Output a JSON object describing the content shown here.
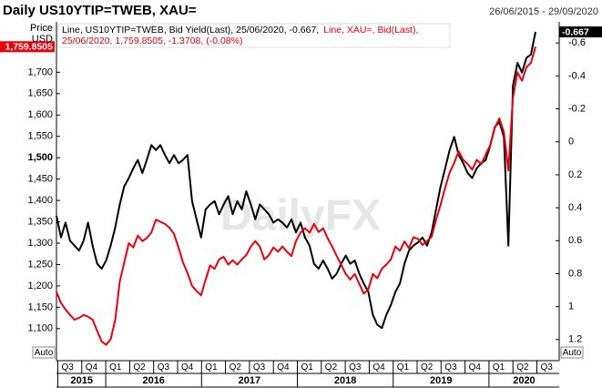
{
  "chart_data": {
    "type": "line",
    "title": "Daily US10YTIP=TWEB, XAU=",
    "date_range": "26/06/2015 - 29/09/2020",
    "ylabel": "Price",
    "yunit": "USD",
    "watermark": "DailyFX",
    "left_axis_mode": "Auto",
    "right_axis_mode": "Auto",
    "ylim": [
      1025,
      1818
    ],
    "yticks": [
      {
        "value": 1100,
        "label": "1,100"
      },
      {
        "value": 1150,
        "label": "1,150"
      },
      {
        "value": 1200,
        "label": "1,200"
      },
      {
        "value": 1250,
        "label": "1,250"
      },
      {
        "value": 1300,
        "label": "1,300"
      },
      {
        "value": 1350,
        "label": "1,350"
      },
      {
        "value": 1400,
        "label": "1,400"
      },
      {
        "value": 1450,
        "label": "1,450"
      },
      {
        "value": 1500,
        "label": "1,500",
        "bold": true
      },
      {
        "value": 1550,
        "label": "1,550"
      },
      {
        "value": 1600,
        "label": "1,600"
      },
      {
        "value": 1650,
        "label": "1,650"
      },
      {
        "value": 1700,
        "label": "1,700"
      }
    ],
    "y2lim": [
      1.328,
      -0.728
    ],
    "y2ticks": [
      -0.6,
      -0.4,
      -0.2,
      0,
      0.2,
      0.4,
      0.6,
      0.8,
      1,
      1.2
    ],
    "x_axis": {
      "years": [
        {
          "label": "2015",
          "quarters": [
            "Q3",
            "Q4"
          ]
        },
        {
          "label": "2016",
          "quarters": [
            "Q1",
            "Q2",
            "Q3",
            "Q4"
          ]
        },
        {
          "label": "2017",
          "quarters": [
            "Q1",
            "Q2",
            "Q3",
            "Q4"
          ]
        },
        {
          "label": "2018",
          "quarters": [
            "Q1",
            "Q2",
            "Q3",
            "Q4"
          ]
        },
        {
          "label": "2019",
          "quarters": [
            "Q1",
            "Q2",
            "Q3",
            "Q4"
          ]
        },
        {
          "label": "2020",
          "quarters": [
            "Q1",
            "Q2",
            "Q3"
          ]
        }
      ]
    },
    "series": [
      {
        "legend_lines": [
          "Line, US10YTIP=TWEB, Bid Yield(Last), 25/06/2020, -0.667,"
        ],
        "color": "#000000",
        "axis": "y2",
        "last_label": "-0.667",
        "values": [
          0.45,
          0.58,
          0.49,
          0.6,
          0.63,
          0.66,
          0.6,
          0.49,
          0.63,
          0.74,
          0.77,
          0.72,
          0.63,
          0.52,
          0.38,
          0.27,
          0.22,
          0.16,
          0.11,
          0.19,
          0.11,
          0.02,
          0.05,
          0.02,
          0.08,
          0.13,
          0.08,
          0.13,
          0.11,
          0.08,
          0.36,
          0.47,
          0.58,
          0.41,
          0.38,
          0.36,
          0.44,
          0.38,
          0.33,
          0.44,
          0.36,
          0.41,
          0.3,
          0.38,
          0.47,
          0.38,
          0.41,
          0.44,
          0.49,
          0.47,
          0.49,
          0.52,
          0.47,
          0.55,
          0.49,
          0.58,
          0.63,
          0.74,
          0.77,
          0.72,
          0.77,
          0.83,
          0.8,
          0.74,
          0.69,
          0.74,
          0.72,
          0.8,
          0.86,
          0.91,
          1.05,
          1.11,
          1.13,
          1.05,
          0.99,
          0.91,
          0.86,
          0.74,
          0.66,
          0.63,
          0.61,
          0.58,
          0.63,
          0.55,
          0.41,
          0.27,
          0.16,
          0.05,
          -0.03,
          0.08,
          0.13,
          0.19,
          0.22,
          0.16,
          0.13,
          0.11,
          0.02,
          -0.09,
          -0.12,
          -0.03,
          0.63,
          -0.34,
          -0.48,
          -0.42,
          -0.51,
          -0.53,
          -0.667
        ]
      },
      {
        "legend_lines": [
          "Line, XAU=, Bid(Last),",
          "25/06/2020, 1,759.8505, -1.3708, (-0.08%)"
        ],
        "color": "#e8000b",
        "axis": "y",
        "last_label": "1,759.8505",
        "values": [
          1186,
          1160,
          1145,
          1132,
          1121,
          1125,
          1132,
          1128,
          1121,
          1095,
          1070,
          1062,
          1075,
          1120,
          1210,
          1255,
          1300,
          1290,
          1318,
          1305,
          1312,
          1325,
          1355,
          1350,
          1345,
          1336,
          1322,
          1290,
          1255,
          1230,
          1200,
          1188,
          1178,
          1215,
          1248,
          1240,
          1262,
          1268,
          1250,
          1260,
          1250,
          1262,
          1272,
          1292,
          1305,
          1292,
          1262,
          1272,
          1290,
          1280,
          1292,
          1280,
          1270,
          1305,
          1325,
          1335,
          1325,
          1345,
          1326,
          1335,
          1312,
          1292,
          1270,
          1250,
          1228,
          1215,
          1228,
          1205,
          1182,
          1192,
          1228,
          1218,
          1240,
          1250,
          1262,
          1292,
          1282,
          1304,
          1288,
          1314,
          1310,
          1296,
          1305,
          1315,
          1355,
          1390,
          1430,
          1465,
          1488,
          1515,
          1495,
          1485,
          1472,
          1495,
          1485,
          1508,
          1530,
          1570,
          1592,
          1560,
          1470,
          1640,
          1700,
          1680,
          1712,
          1722,
          1759.8505
        ]
      }
    ]
  }
}
